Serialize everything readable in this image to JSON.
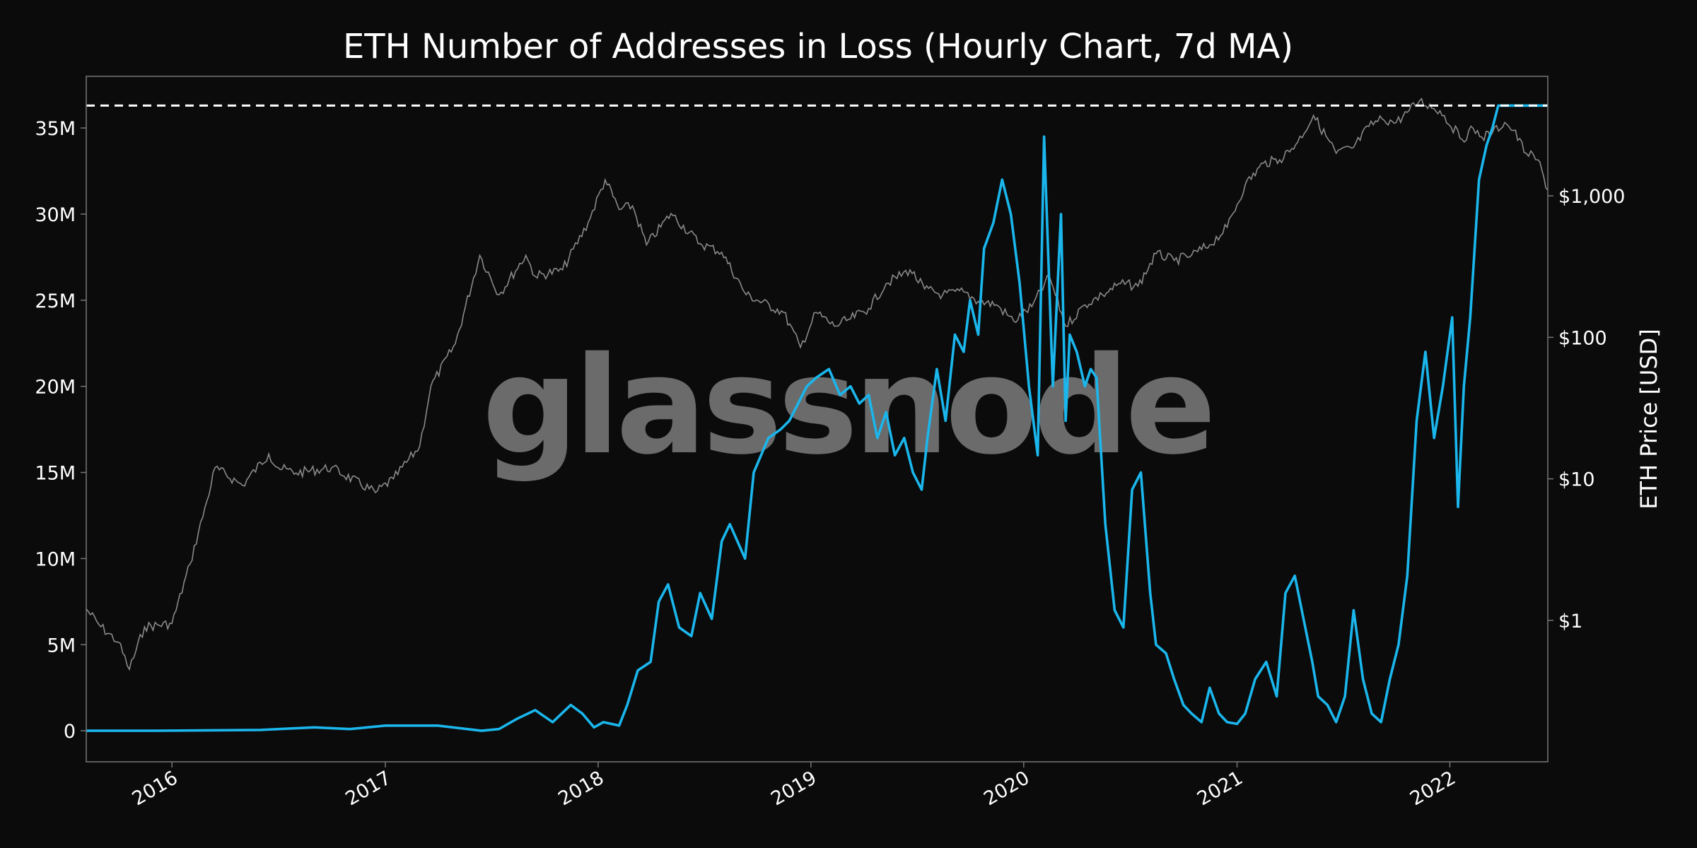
{
  "chart_data": {
    "type": "line",
    "title": "ETH Number of Addresses in Loss (Hourly Chart, 7d MA)",
    "xlabel": "",
    "ylabel_left": "",
    "ylabel_right": "ETH Price [USD]",
    "watermark": "glassnode",
    "x_ticks": [
      "2016",
      "2017",
      "2018",
      "2019",
      "2020",
      "2021",
      "2022"
    ],
    "y_left_ticks": [
      "0",
      "5M",
      "10M",
      "15M",
      "20M",
      "25M",
      "30M",
      "35M"
    ],
    "y_left_tick_values": [
      0,
      5000000,
      10000000,
      15000000,
      20000000,
      25000000,
      30000000,
      35000000
    ],
    "y_right_ticks": [
      "$1",
      "$10",
      "$100",
      "$1,000"
    ],
    "y_right_tick_values": [
      1,
      10,
      100,
      1000
    ],
    "xlim": [
      "2015-08-07",
      "2022-06-18"
    ],
    "ylim_left": [
      -1800000,
      38000000
    ],
    "ylim_right": [
      0.1,
      7000
    ],
    "y_right_scale": "log",
    "grid": false,
    "colors": {
      "background": "#0b0b0b",
      "addresses_line": "#1ab6ec",
      "price_line": "#8a8a8a",
      "ath_line": "#ffffff",
      "frame": "#777777",
      "text": "#ffffff",
      "watermark": "#6b6b6b"
    },
    "ath_line_value": 36300000,
    "series": [
      {
        "axis": "left",
        "x": [
          "2015-08-07",
          "2015-12-01",
          "2016-06-01",
          "2016-09-01",
          "2016-11-01",
          "2017-01-01",
          "2017-04-01",
          "2017-06-15",
          "2017-07-15",
          "2017-08-15",
          "2017-09-15",
          "2017-10-15",
          "2017-11-15",
          "2017-12-05",
          "2017-12-25",
          "2018-01-10",
          "2018-02-06",
          "2018-02-20",
          "2018-03-10",
          "2018-04-01",
          "2018-04-15",
          "2018-05-01",
          "2018-05-20",
          "2018-06-10",
          "2018-06-25",
          "2018-07-15",
          "2018-08-01",
          "2018-08-15",
          "2018-09-10",
          "2018-09-25",
          "2018-10-20",
          "2018-11-10",
          "2018-11-25",
          "2018-12-10",
          "2018-12-25",
          "2019-01-10",
          "2019-02-01",
          "2019-02-20",
          "2019-03-10",
          "2019-03-25",
          "2019-04-10",
          "2019-04-25",
          "2019-05-10",
          "2019-05-25",
          "2019-06-10",
          "2019-06-25",
          "2019-07-10",
          "2019-07-20",
          "2019-08-05",
          "2019-08-20",
          "2019-09-05",
          "2019-09-20",
          "2019-10-01",
          "2019-10-15",
          "2019-10-25",
          "2019-11-10",
          "2019-11-25",
          "2019-12-10",
          "2019-12-25",
          "2020-01-10",
          "2020-01-25",
          "2020-02-05",
          "2020-02-20",
          "2020-03-05",
          "2020-03-13",
          "2020-03-20",
          "2020-04-01",
          "2020-04-15",
          "2020-04-25",
          "2020-05-05",
          "2020-05-20",
          "2020-06-05",
          "2020-06-20",
          "2020-07-05",
          "2020-07-20",
          "2020-08-05",
          "2020-08-15",
          "2020-09-01",
          "2020-09-15",
          "2020-10-01",
          "2020-10-15",
          "2020-11-01",
          "2020-11-15",
          "2020-12-01",
          "2020-12-15",
          "2021-01-01",
          "2021-01-15",
          "2021-02-01",
          "2021-02-20",
          "2021-03-10",
          "2021-03-25",
          "2021-04-10",
          "2021-04-25",
          "2021-05-10",
          "2021-05-20",
          "2021-06-05",
          "2021-06-20",
          "2021-07-05",
          "2021-07-20",
          "2021-08-05",
          "2021-08-20",
          "2021-09-05",
          "2021-09-20",
          "2021-10-05",
          "2021-10-20",
          "2021-11-05",
          "2021-11-20",
          "2021-12-05",
          "2021-12-20",
          "2022-01-05",
          "2022-01-15",
          "2022-01-25",
          "2022-02-05",
          "2022-02-20",
          "2022-03-05",
          "2022-03-15",
          "2022-03-25",
          "2022-04-05",
          "2022-04-20",
          "2022-05-05",
          "2022-05-15",
          "2022-05-25",
          "2022-06-05",
          "2022-06-18"
        ],
        "values": [
          0,
          0,
          50000,
          200000,
          100000,
          300000,
          300000,
          0,
          100000,
          700000,
          1200000,
          500000,
          1500000,
          1000000,
          200000,
          500000,
          300000,
          1500000,
          3500000,
          4000000,
          7500000,
          8500000,
          6000000,
          5500000,
          8000000,
          6500000,
          11000000,
          12000000,
          10000000,
          15000000,
          17000000,
          17500000,
          18000000,
          19000000,
          20000000,
          20500000,
          21000000,
          19500000,
          20000000,
          19000000,
          19500000,
          17000000,
          18500000,
          16000000,
          17000000,
          15000000,
          14000000,
          17000000,
          21000000,
          18000000,
          23000000,
          22000000,
          25000000,
          23000000,
          28000000,
          29500000,
          32000000,
          30000000,
          26000000,
          20000000,
          16000000,
          34500000,
          20000000,
          30000000,
          18000000,
          23000000,
          22000000,
          20000000,
          21000000,
          20500000,
          12000000,
          7000000,
          6000000,
          14000000,
          15000000,
          8000000,
          5000000,
          4500000,
          3000000,
          1500000,
          1000000,
          500000,
          2500000,
          1000000,
          500000,
          400000,
          1000000,
          3000000,
          4000000,
          2000000,
          8000000,
          9000000,
          6500000,
          4000000,
          2000000,
          1500000,
          500000,
          2000000,
          7000000,
          3000000,
          1000000,
          500000,
          3000000,
          5000000,
          9000000,
          18000000,
          22000000,
          17000000,
          20000000,
          24000000,
          13000000,
          20000000,
          24000000,
          32000000,
          34000000,
          35000000,
          36300000,
          36300000,
          36300000,
          36300000,
          36300000,
          36300000,
          36300000,
          36300000
        ]
      },
      {
        "axis": "right",
        "x": [
          "2015-08-07",
          "2015-09-01",
          "2015-10-01",
          "2015-10-20",
          "2015-11-15",
          "2016-01-01",
          "2016-02-01",
          "2016-03-01",
          "2016-03-15",
          "2016-05-01",
          "2016-06-15",
          "2016-07-01",
          "2016-08-01",
          "2016-10-01",
          "2016-12-15",
          "2017-01-15",
          "2017-03-01",
          "2017-03-20",
          "2017-05-01",
          "2017-06-12",
          "2017-07-15",
          "2017-08-30",
          "2017-09-15",
          "2017-11-01",
          "2017-12-15",
          "2018-01-13",
          "2018-02-06",
          "2018-03-01",
          "2018-03-25",
          "2018-05-06",
          "2018-06-25",
          "2018-08-01",
          "2018-09-12",
          "2018-11-15",
          "2018-12-14",
          "2019-01-10",
          "2019-02-10",
          "2019-03-10",
          "2019-04-10",
          "2019-05-10",
          "2019-06-20",
          "2019-07-15",
          "2019-08-15",
          "2019-09-20",
          "2019-10-15",
          "2019-11-15",
          "2019-12-15",
          "2020-01-15",
          "2020-02-14",
          "2020-03-13",
          "2020-04-15",
          "2020-05-15",
          "2020-06-15",
          "2020-07-15",
          "2020-08-15",
          "2020-09-15",
          "2020-10-15",
          "2020-11-15",
          "2020-12-15",
          "2021-01-15",
          "2021-02-15",
          "2021-03-15",
          "2021-04-15",
          "2021-05-12",
          "2021-06-20",
          "2021-07-20",
          "2021-08-15",
          "2021-09-07",
          "2021-10-01",
          "2021-10-20",
          "2021-11-10",
          "2021-12-15",
          "2022-01-22",
          "2022-02-10",
          "2022-02-25",
          "2022-03-15",
          "2022-04-05",
          "2022-04-20",
          "2022-05-12",
          "2022-06-01",
          "2022-06-18"
        ],
        "values": [
          1.2,
          0.9,
          0.7,
          0.45,
          0.9,
          0.95,
          2.5,
          7,
          12,
          9,
          15,
          12,
          11,
          12,
          8,
          10,
          17,
          45,
          90,
          380,
          200,
          380,
          270,
          300,
          650,
          1300,
          800,
          850,
          450,
          750,
          460,
          400,
          200,
          150,
          85,
          150,
          120,
          135,
          160,
          240,
          300,
          220,
          200,
          210,
          180,
          170,
          130,
          165,
          270,
          120,
          170,
          200,
          240,
          230,
          390,
          350,
          380,
          450,
          600,
          1200,
          1700,
          1800,
          2400,
          3700,
          2000,
          2200,
          3100,
          3500,
          3300,
          3900,
          4700,
          4000,
          2500,
          3000,
          2600,
          2800,
          3300,
          2900,
          2000,
          1800,
          1100
        ]
      }
    ]
  }
}
